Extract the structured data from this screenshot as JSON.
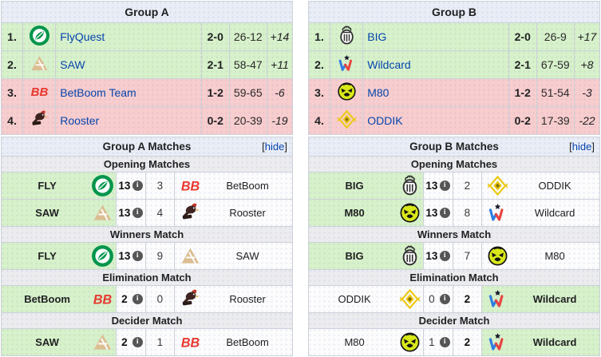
{
  "icons": {
    "info_glyph": "i"
  },
  "theme": {
    "win_bg": "#d7f1ca",
    "lose_bg": "#f8cdce",
    "header_bg": "#e9edf6",
    "subheader_bg": "#ececef",
    "link_color": "#0645ad",
    "info_icon_bg": "#555555"
  },
  "groups": [
    {
      "title": "Group A",
      "standings": [
        {
          "rank": "1.",
          "team": "FlyQuest",
          "logo": "flyquest",
          "series": "2-0",
          "rounds": "26-12",
          "diff": "+14",
          "status": "up"
        },
        {
          "rank": "2.",
          "team": "SAW",
          "logo": "saw",
          "series": "2-1",
          "rounds": "58-47",
          "diff": "+11",
          "status": "up"
        },
        {
          "rank": "3.",
          "team": "BetBoom Team",
          "logo": "betboom",
          "series": "1-2",
          "rounds": "59-65",
          "diff": "-6",
          "status": "down"
        },
        {
          "rank": "4.",
          "team": "Rooster",
          "logo": "rooster",
          "series": "0-2",
          "rounds": "20-39",
          "diff": "-19",
          "status": "down"
        }
      ],
      "matches_title": "Group A Matches",
      "hide": {
        "open": "[",
        "label": "hide",
        "close": "]"
      },
      "sections": [
        {
          "label": "Opening Matches",
          "matches": [
            {
              "left": {
                "name": "FLY",
                "logo": "flyquest",
                "score": "13",
                "winner": true
              },
              "right": {
                "name": "BetBoom",
                "logo": "betboom",
                "score": "3",
                "winner": false
              }
            },
            {
              "left": {
                "name": "SAW",
                "logo": "saw",
                "score": "13",
                "winner": true
              },
              "right": {
                "name": "Rooster",
                "logo": "rooster",
                "score": "4",
                "winner": false
              }
            }
          ]
        },
        {
          "label": "Winners Match",
          "matches": [
            {
              "left": {
                "name": "FLY",
                "logo": "flyquest",
                "score": "13",
                "winner": true
              },
              "right": {
                "name": "SAW",
                "logo": "saw",
                "score": "9",
                "winner": false
              }
            }
          ]
        },
        {
          "label": "Elimination Match",
          "matches": [
            {
              "left": {
                "name": "BetBoom",
                "logo": "betboom",
                "score": "2",
                "winner": true
              },
              "right": {
                "name": "Rooster",
                "logo": "rooster",
                "score": "0",
                "winner": false
              }
            }
          ]
        },
        {
          "label": "Decider Match",
          "matches": [
            {
              "left": {
                "name": "SAW",
                "logo": "saw",
                "score": "2",
                "winner": true
              },
              "right": {
                "name": "BetBoom",
                "logo": "betboom",
                "score": "1",
                "winner": false
              }
            }
          ]
        }
      ]
    },
    {
      "title": "Group B",
      "standings": [
        {
          "rank": "1.",
          "team": "BIG",
          "logo": "big",
          "series": "2-0",
          "rounds": "26-9",
          "diff": "+17",
          "status": "up"
        },
        {
          "rank": "2.",
          "team": "Wildcard",
          "logo": "wildcard",
          "series": "2-1",
          "rounds": "67-59",
          "diff": "+8",
          "status": "up"
        },
        {
          "rank": "3.",
          "team": "M80",
          "logo": "m80",
          "series": "1-2",
          "rounds": "51-54",
          "diff": "-3",
          "status": "down"
        },
        {
          "rank": "4.",
          "team": "ODDIK",
          "logo": "oddik",
          "series": "0-2",
          "rounds": "17-39",
          "diff": "-22",
          "status": "down"
        }
      ],
      "matches_title": "Group B Matches",
      "hide": {
        "open": "[",
        "label": "hide",
        "close": "]"
      },
      "sections": [
        {
          "label": "Opening Matches",
          "matches": [
            {
              "left": {
                "name": "BIG",
                "logo": "big",
                "score": "13",
                "winner": true
              },
              "right": {
                "name": "ODDIK",
                "logo": "oddik",
                "score": "2",
                "winner": false
              }
            },
            {
              "left": {
                "name": "M80",
                "logo": "m80",
                "score": "13",
                "winner": true
              },
              "right": {
                "name": "Wildcard",
                "logo": "wildcard",
                "score": "8",
                "winner": false
              }
            }
          ]
        },
        {
          "label": "Winners Match",
          "matches": [
            {
              "left": {
                "name": "BIG",
                "logo": "big",
                "score": "13",
                "winner": true
              },
              "right": {
                "name": "M80",
                "logo": "m80",
                "score": "7",
                "winner": false
              }
            }
          ]
        },
        {
          "label": "Elimination Match",
          "matches": [
            {
              "left": {
                "name": "ODDIK",
                "logo": "oddik",
                "score": "0",
                "winner": false
              },
              "right": {
                "name": "Wildcard",
                "logo": "wildcard",
                "score": "2",
                "winner": true
              }
            }
          ]
        },
        {
          "label": "Decider Match",
          "matches": [
            {
              "left": {
                "name": "M80",
                "logo": "m80",
                "score": "1",
                "winner": false
              },
              "right": {
                "name": "Wildcard",
                "logo": "wildcard",
                "score": "2",
                "winner": true
              }
            }
          ]
        }
      ]
    }
  ]
}
